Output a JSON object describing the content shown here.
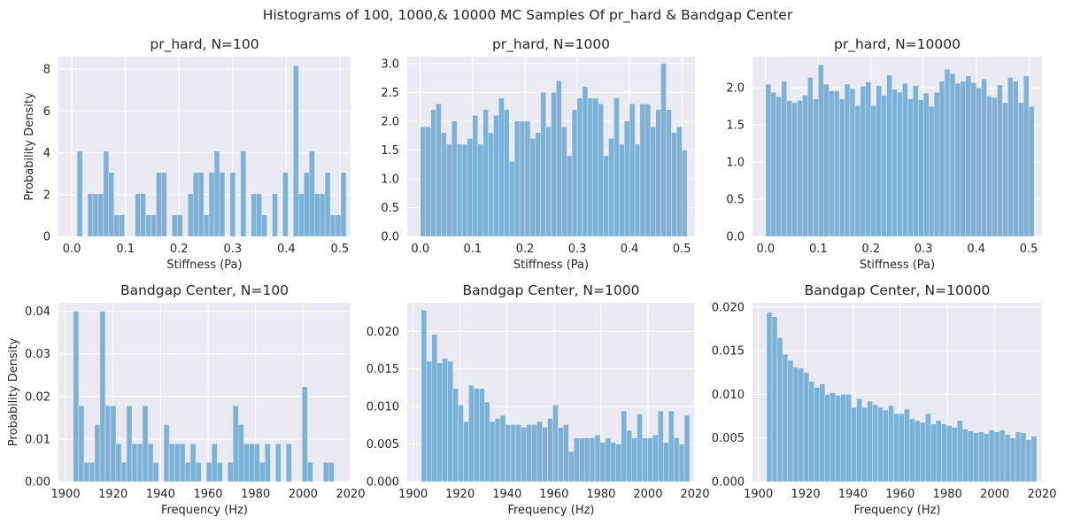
{
  "figure": {
    "suptitle": "Histograms of 100, 1000,& 10000 MC Samples Of pr_hard & Bandgap Center"
  },
  "chart_data": [
    {
      "type": "bar",
      "title": "pr_hard, N=100",
      "xlabel": "Stiffness (Pa)",
      "ylabel": "Probability Density",
      "xlim": [
        -0.025,
        0.52
      ],
      "ylim": [
        0,
        8.6
      ],
      "xticks": [
        0.0,
        0.1,
        0.2,
        0.3,
        0.4,
        0.5
      ],
      "xtick_labels": [
        "0.0",
        "0.1",
        "0.2",
        "0.3",
        "0.4",
        "0.5"
      ],
      "yticks": [
        0,
        2,
        4,
        6,
        8
      ],
      "ytick_labels": [
        "0",
        "2",
        "4",
        "6",
        "8"
      ],
      "bin_start": 0.0,
      "bin_width": 0.00984,
      "values": [
        0,
        4.08,
        0,
        2.04,
        2.04,
        2.04,
        4.08,
        3.06,
        1.02,
        1.02,
        0,
        0,
        2.04,
        2.04,
        1.02,
        1.02,
        3.06,
        3.06,
        0,
        1.02,
        1.02,
        0,
        2.04,
        3.06,
        3.06,
        1.02,
        3.06,
        4.08,
        3.06,
        0,
        3.06,
        0,
        4.08,
        0,
        2.04,
        2.04,
        1.02,
        0,
        2.04,
        0,
        3.06,
        0,
        8.16,
        2.04,
        3.06,
        4.08,
        2.04,
        2.04,
        3.06,
        1.02,
        1.02,
        3.06
      ]
    },
    {
      "type": "bar",
      "title": "pr_hard, N=1000",
      "xlabel": "Stiffness (Pa)",
      "ylabel": "",
      "xlim": [
        -0.025,
        0.525
      ],
      "ylim": [
        0,
        3.12
      ],
      "xticks": [
        0.0,
        0.1,
        0.2,
        0.3,
        0.4,
        0.5
      ],
      "xtick_labels": [
        "0.0",
        "0.1",
        "0.2",
        "0.3",
        "0.4",
        "0.5"
      ],
      "yticks": [
        0,
        0.5,
        1.0,
        1.5,
        2.0,
        2.5,
        3.0
      ],
      "ytick_labels": [
        "0.0",
        "0.5",
        "1.0",
        "1.5",
        "2.0",
        "2.5",
        "3.0"
      ],
      "bin_start": 0.0,
      "bin_width": 0.01,
      "values": [
        1.9,
        1.9,
        2.2,
        2.3,
        1.8,
        1.6,
        2.0,
        1.6,
        1.6,
        1.7,
        2.1,
        1.6,
        2.2,
        1.8,
        2.1,
        2.4,
        2.2,
        1.3,
        2.0,
        2.0,
        2.0,
        1.7,
        1.8,
        2.5,
        1.9,
        2.5,
        2.7,
        1.9,
        1.4,
        2.2,
        2.4,
        2.6,
        2.4,
        2.4,
        2.3,
        1.4,
        1.7,
        2.4,
        1.6,
        2.0,
        2.3,
        1.6,
        2.3,
        2.3,
        1.9,
        2.2,
        3.0,
        2.2,
        1.8,
        1.9,
        1.5
      ]
    },
    {
      "type": "bar",
      "title": "pr_hard, N=10000",
      "xlabel": "Stiffness (Pa)",
      "ylabel": "",
      "xlim": [
        -0.025,
        0.525
      ],
      "ylim": [
        0,
        2.42
      ],
      "xticks": [
        0.0,
        0.1,
        0.2,
        0.3,
        0.4,
        0.5
      ],
      "xtick_labels": [
        "0.0",
        "0.1",
        "0.2",
        "0.3",
        "0.4",
        "0.5"
      ],
      "yticks": [
        0,
        0.5,
        1.0,
        1.5,
        2.0
      ],
      "ytick_labels": [
        "0.0",
        "0.5",
        "1.0",
        "1.5",
        "2.0"
      ],
      "bin_start": 0.0,
      "bin_width": 0.01,
      "values": [
        2.05,
        1.94,
        1.88,
        2.09,
        1.83,
        1.8,
        1.83,
        1.9,
        2.14,
        1.85,
        2.31,
        2.05,
        1.96,
        1.96,
        1.85,
        2.05,
        1.99,
        1.76,
        2.02,
        2.08,
        1.76,
        2.03,
        1.9,
        2.17,
        1.98,
        1.94,
        2.06,
        1.85,
        2.03,
        1.84,
        1.93,
        1.75,
        1.94,
        2.09,
        2.25,
        2.19,
        2.06,
        2.09,
        2.16,
        2.07,
        2.0,
        2.12,
        1.89,
        1.87,
        2.04,
        1.8,
        2.14,
        2.09,
        1.8,
        2.16,
        1.75
      ]
    },
    {
      "type": "bar",
      "title": "Bandgap Center, N=100",
      "xlabel": "Frequency (Hz)",
      "ylabel": "Probability Density",
      "xlim": [
        1897,
        2020
      ],
      "ylim": [
        0,
        0.042
      ],
      "xticks": [
        1900,
        1920,
        1940,
        1960,
        1980,
        2000,
        2020
      ],
      "xtick_labels": [
        "1900",
        "1920",
        "1940",
        "1960",
        "1980",
        "2000",
        "2020"
      ],
      "yticks": [
        0,
        0.01,
        0.02,
        0.03,
        0.04
      ],
      "ytick_labels": [
        "0.00",
        "0.01",
        "0.02",
        "0.03",
        "0.04"
      ],
      "bin_start": 1903.3,
      "bin_width": 2.24,
      "values": [
        0.04,
        0.0178,
        0.0045,
        0.0045,
        0.0134,
        0.04,
        0.0178,
        0.0178,
        0.0089,
        0.0045,
        0.0178,
        0.0089,
        0.0089,
        0.0178,
        0.0089,
        0.0045,
        0,
        0.0134,
        0.0089,
        0.0089,
        0.0089,
        0.0045,
        0.0089,
        0.0045,
        0,
        0.0045,
        0.0089,
        0.0045,
        0,
        0.0045,
        0.0178,
        0.0134,
        0.0089,
        0.0089,
        0.0089,
        0.0045,
        0.0089,
        0,
        0.0089,
        0,
        0.0089,
        0,
        0,
        0.0223,
        0.0045,
        0,
        0,
        0.0045,
        0.0045,
        0
      ]
    },
    {
      "type": "bar",
      "title": "Bandgap Center, N=1000",
      "xlabel": "Frequency (Hz)",
      "ylabel": "",
      "xlim": [
        1897.5,
        2020
      ],
      "ylim": [
        0,
        0.0238
      ],
      "xticks": [
        1900,
        1920,
        1940,
        1960,
        1980,
        2000,
        2020
      ],
      "xtick_labels": [
        "1900",
        "1920",
        "1940",
        "1960",
        "1980",
        "2000",
        "2020"
      ],
      "yticks": [
        0,
        0.005,
        0.01,
        0.015,
        0.02
      ],
      "ytick_labels": [
        "0.000",
        "0.005",
        "0.010",
        "0.015",
        "0.020"
      ],
      "bin_start": 1903.5,
      "bin_width": 2.24,
      "values": [
        0.0228,
        0.016,
        0.0196,
        0.0158,
        0.0164,
        0.016,
        0.0124,
        0.0102,
        0.008,
        0.0128,
        0.0124,
        0.0124,
        0.0106,
        0.008,
        0.0084,
        0.0088,
        0.0076,
        0.0076,
        0.0076,
        0.0072,
        0.0076,
        0.0076,
        0.008,
        0.0072,
        0.0084,
        0.0102,
        0.0072,
        0.0076,
        0.004,
        0.0058,
        0.0058,
        0.0058,
        0.0058,
        0.0062,
        0.0052,
        0.0058,
        0.0052,
        0.005,
        0.0094,
        0.0068,
        0.0058,
        0.009,
        0.0058,
        0.0058,
        0.0062,
        0.0094,
        0.0052,
        0.0094,
        0.0058,
        0.005,
        0.0088
      ]
    },
    {
      "type": "bar",
      "title": "Bandgap Center, N=10000",
      "xlabel": "Frequency (Hz)",
      "ylabel": "",
      "xlim": [
        1897.5,
        2020
      ],
      "ylim": [
        0,
        0.0205
      ],
      "xticks": [
        1900,
        1920,
        1940,
        1960,
        1980,
        2000,
        2020
      ],
      "xtick_labels": [
        "1900",
        "1920",
        "1940",
        "1960",
        "1980",
        "2000",
        "2020"
      ],
      "yticks": [
        0,
        0.005,
        0.01,
        0.015,
        0.02
      ],
      "ytick_labels": [
        "0.000",
        "0.005",
        "0.010",
        "0.015",
        "0.020"
      ],
      "bin_start": 1903.5,
      "bin_width": 2.24,
      "values": [
        0.0194,
        0.0189,
        0.0165,
        0.0146,
        0.0139,
        0.0131,
        0.013,
        0.0125,
        0.0115,
        0.0108,
        0.0112,
        0.01,
        0.0102,
        0.0099,
        0.01,
        0.01,
        0.0085,
        0.0095,
        0.0085,
        0.0092,
        0.0088,
        0.0085,
        0.0082,
        0.0087,
        0.0078,
        0.0078,
        0.0083,
        0.0072,
        0.007,
        0.0068,
        0.0078,
        0.0066,
        0.007,
        0.0066,
        0.0064,
        0.0062,
        0.007,
        0.006,
        0.0058,
        0.0056,
        0.0057,
        0.0055,
        0.0059,
        0.0057,
        0.0059,
        0.0054,
        0.005,
        0.0057,
        0.0056,
        0.0048,
        0.0052
      ]
    }
  ]
}
